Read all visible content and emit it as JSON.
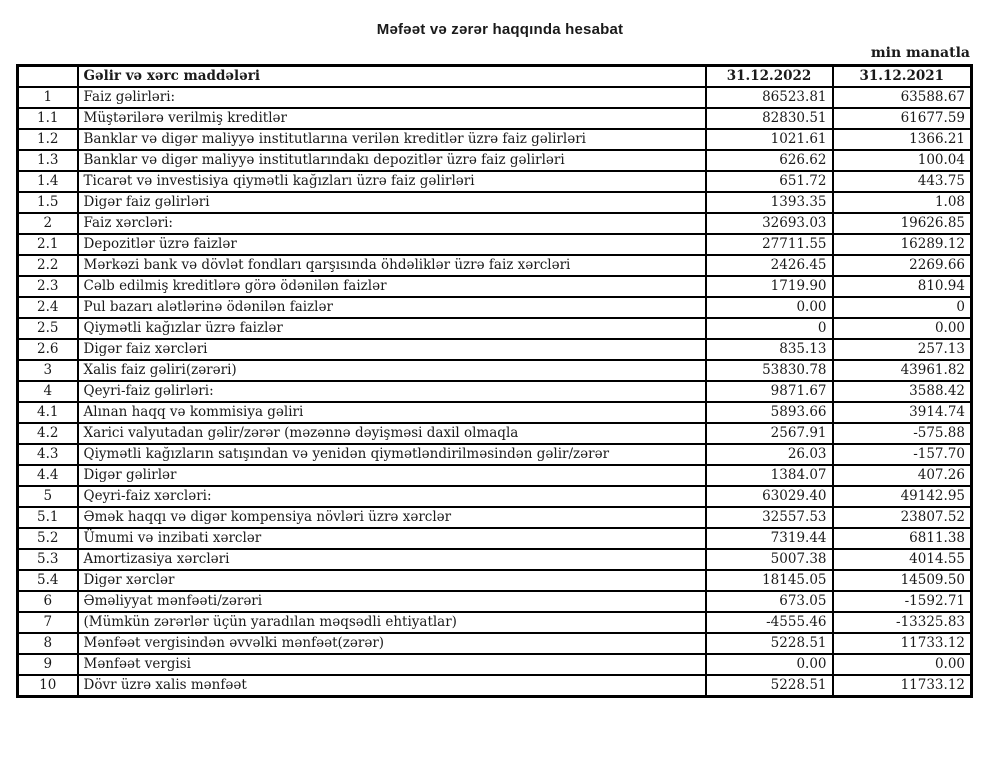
{
  "page": {
    "title": "Məfəət və zərər haqqında hesabat",
    "unit_note": "min manatla"
  },
  "table": {
    "columns": {
      "items_header": "Gəlir və xərc maddələri",
      "col_2022": "31.12.2022",
      "col_2021": "31.12.2021"
    },
    "rows": [
      {
        "num": "1",
        "label": "Faiz gəlirləri:",
        "v2022": "86523.81",
        "v2021": "63588.67",
        "bold_label": true,
        "bold_v2022": true,
        "bold_v2021": true
      },
      {
        "num": "1.1",
        "label": "Müştərilərə verilmiş kreditlər",
        "v2022": "82830.51",
        "v2021": "61677.59",
        "bold_label": false,
        "bold_v2022": false,
        "bold_v2021": false
      },
      {
        "num": "1.2",
        "label": "Banklar və digər maliyyə institutlarına verilən kreditlər üzrə faiz gəlirləri",
        "v2022": "1021.61",
        "v2021": "1366.21",
        "bold_label": false,
        "bold_v2022": false,
        "bold_v2021": false
      },
      {
        "num": "1.3",
        "label": "Banklar və digər maliyyə institutlarındakı depozitlər üzrə faiz gəlirləri",
        "v2022": "626.62",
        "v2021": "100.04",
        "bold_label": false,
        "bold_v2022": false,
        "bold_v2021": false
      },
      {
        "num": "1.4",
        "label": "Ticarət və investisiya qiymətli kağızları üzrə faiz gəlirləri",
        "v2022": "651.72",
        "v2021": "443.75",
        "bold_label": false,
        "bold_v2022": false,
        "bold_v2021": false
      },
      {
        "num": "1.5",
        "label": "Digər faiz gəlirləri",
        "v2022": "1393.35",
        "v2021": "1.08",
        "bold_label": false,
        "bold_v2022": false,
        "bold_v2021": false
      },
      {
        "num": "2",
        "label": "Faiz xərcləri:",
        "v2022": "32693.03",
        "v2021": "19626.85",
        "bold_label": true,
        "bold_v2022": true,
        "bold_v2021": true
      },
      {
        "num": "2.1",
        "label": "Depozitlər üzrə faizlər",
        "v2022": "27711.55",
        "v2021": "16289.12",
        "bold_label": false,
        "bold_v2022": false,
        "bold_v2021": false
      },
      {
        "num": "2.2",
        "label": "Mərkəzi bank və dövlət fondları qarşısında öhdəliklər üzrə faiz xərcləri",
        "v2022": "2426.45",
        "v2021": "2269.66",
        "bold_label": false,
        "bold_v2022": false,
        "bold_v2021": false
      },
      {
        "num": "2.3",
        "label": "Cəlb edilmiş kreditlərə görə ödənilən faizlər",
        "v2022": "1719.90",
        "v2021": "810.94",
        "bold_label": false,
        "bold_v2022": false,
        "bold_v2021": false
      },
      {
        "num": "2.4",
        "label": "Pul bazarı alətlərinə ödənilən faizlər",
        "v2022": "0.00",
        "v2021": "0",
        "bold_label": false,
        "bold_v2022": false,
        "bold_v2021": false
      },
      {
        "num": "2.5",
        "label": "Qiymətli kağızlar üzrə faizlər",
        "v2022": "0",
        "v2021": "0.00",
        "bold_label": false,
        "bold_v2022": false,
        "bold_v2021": false
      },
      {
        "num": "2.6",
        "label": "Digər faiz xərcləri",
        "v2022": "835.13",
        "v2021": "257.13",
        "bold_label": false,
        "bold_v2022": false,
        "bold_v2021": false
      },
      {
        "num": "3",
        "label": "Xalis faiz gəliri(zərəri)",
        "v2022": "53830.78",
        "v2021": "43961.82",
        "bold_label": true,
        "bold_v2022": true,
        "bold_v2021": true
      },
      {
        "num": "4",
        "label": "Qeyri-faiz gəlirləri:",
        "v2022": "9871.67",
        "v2021": "3588.42",
        "bold_label": true,
        "bold_v2022": true,
        "bold_v2021": true
      },
      {
        "num": "4.1",
        "label": "Alınan haqq və kommisiya gəliri",
        "v2022": "5893.66",
        "v2021": "3914.74",
        "bold_label": false,
        "bold_v2022": false,
        "bold_v2021": false
      },
      {
        "num": "4.2",
        "label": "Xarici valyutadan gəlir/zərər (məzənnə dəyişməsi daxil olmaqla",
        "v2022": "2567.91",
        "v2021": "-575.88",
        "bold_label": false,
        "bold_v2022": false,
        "bold_v2021": false
      },
      {
        "num": "4.3",
        "label": "Qiymətli kağızların satışından və yenidən qiymətləndirilməsindən gəlir/zərər",
        "v2022": "26.03",
        "v2021": "-157.70",
        "bold_label": false,
        "bold_v2022": false,
        "bold_v2021": false
      },
      {
        "num": "4.4",
        "label": "Digər gəlirlər",
        "v2022": "1384.07",
        "v2021": "407.26",
        "bold_label": false,
        "bold_v2022": false,
        "bold_v2021": false
      },
      {
        "num": "5",
        "label": "Qeyri-faiz xərcləri:",
        "v2022": "63029.40",
        "v2021": "49142.95",
        "bold_label": true,
        "bold_v2022": true,
        "bold_v2021": true
      },
      {
        "num": "5.1",
        "label": "Əmək haqqı və digər kompensiya növləri üzrə xərclər",
        "v2022": "32557.53",
        "v2021": "23807.52",
        "bold_label": false,
        "bold_v2022": false,
        "bold_v2021": false
      },
      {
        "num": "5.2",
        "label": "Ümumi və inzibati xərclər",
        "v2022": "7319.44",
        "v2021": "6811.38",
        "bold_label": false,
        "bold_v2022": false,
        "bold_v2021": false
      },
      {
        "num": "5.3",
        "label": "Amortizasiya xərcləri",
        "v2022": "5007.38",
        "v2021": "4014.55",
        "bold_label": false,
        "bold_v2022": false,
        "bold_v2021": false
      },
      {
        "num": "5.4",
        "label": "Digər xərclər",
        "v2022": "18145.05",
        "v2021": "14509.50",
        "bold_label": false,
        "bold_v2022": false,
        "bold_v2021": false
      },
      {
        "num": "6",
        "label": "Əməliyyat mənfəəti/zərəri",
        "v2022": "673.05",
        "v2021": "-1592.71",
        "bold_label": true,
        "bold_v2022": false,
        "bold_v2021": false
      },
      {
        "num": "7",
        "label": "(Mümkün zərərlər üçün yaradılan məqsədli ehtiyatlar)",
        "v2022": "-4555.46",
        "v2021": "-13325.83",
        "bold_label": true,
        "bold_v2022": true,
        "bold_v2021": true
      },
      {
        "num": "8",
        "label": "Mənfəət vergisindən əvvəlki mənfəət(zərər)",
        "v2022": "5228.51",
        "v2021": "11733.12",
        "bold_label": true,
        "bold_v2022": true,
        "bold_v2021": true
      },
      {
        "num": "9",
        "label": "Mənfəət vergisi",
        "v2022": "0.00",
        "v2021": "0.00",
        "bold_label": true,
        "bold_v2022": false,
        "bold_v2021": true
      },
      {
        "num": "10",
        "label": "Dövr üzrə xalis mənfəət",
        "v2022": "5228.51",
        "v2021": "11733.12",
        "bold_label": true,
        "bold_v2022": true,
        "bold_v2021": true
      }
    ]
  }
}
